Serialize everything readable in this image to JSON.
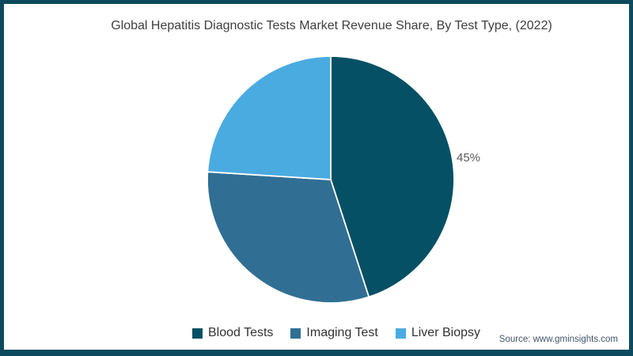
{
  "frame": {
    "border_color": "#0d4a5f",
    "background_color": "#ffffff"
  },
  "chart_data": {
    "type": "pie",
    "title": "Global Hepatitis Diagnostic Tests Market Revenue Share, By Test Type, (2022)",
    "start_angle_deg": 0,
    "direction": "clockwise",
    "legend_position": "bottom",
    "slices": [
      {
        "name": "Blood Tests",
        "value": 45,
        "color": "#055064",
        "label": "45%"
      },
      {
        "name": "Imaging Test",
        "value": 31,
        "color": "#306f93",
        "label": ""
      },
      {
        "name": "Liver Biopsy",
        "value": 24,
        "color": "#4aabe0",
        "label": ""
      }
    ],
    "annotations": [
      "45%"
    ],
    "separator_color": "#ffffff",
    "title_color": "#3f3f3f",
    "label_color": "#595959"
  },
  "source": {
    "text": "Source: www.gminsights.com"
  }
}
